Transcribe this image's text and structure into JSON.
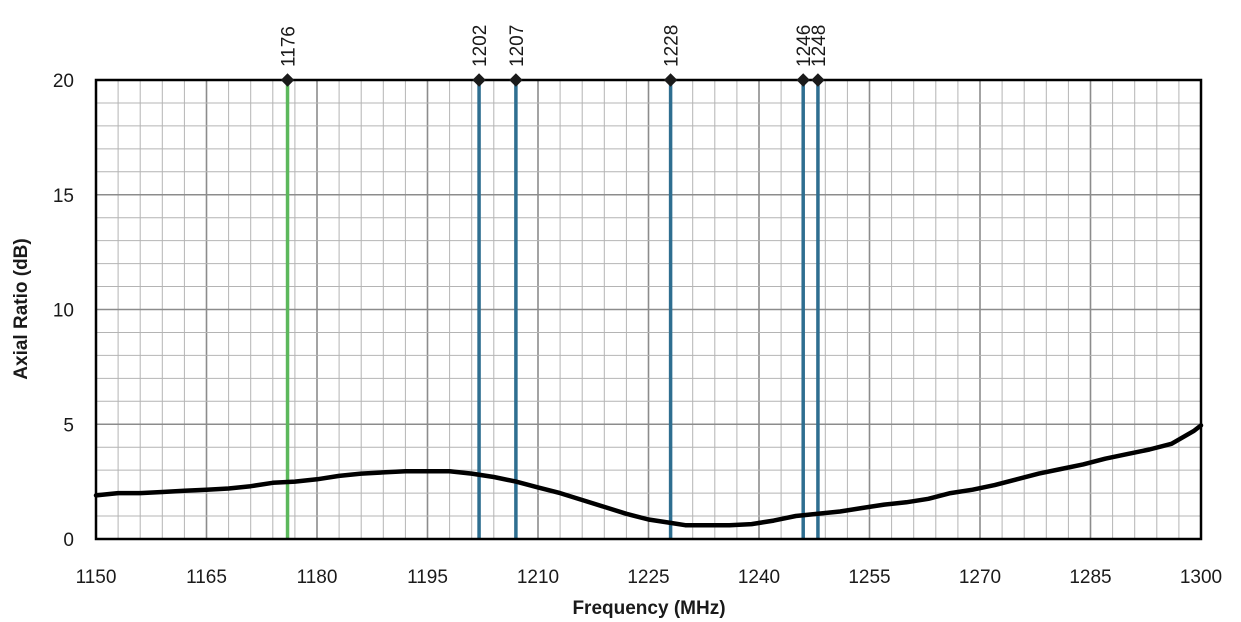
{
  "chart_data": {
    "type": "line",
    "title": "",
    "xlabel": "Frequency (MHz)",
    "ylabel": "Axial Ratio (dB)",
    "xlim": [
      1150,
      1300
    ],
    "ylim": [
      0,
      20
    ],
    "x_ticks": [
      1150,
      1165,
      1180,
      1195,
      1210,
      1225,
      1240,
      1255,
      1270,
      1285,
      1300
    ],
    "x_tick_labels": [
      "1150",
      "1165",
      "1180",
      "1195",
      "1210",
      "1225",
      "1240",
      "1255",
      "1270",
      "1285",
      "1300"
    ],
    "y_ticks": [
      0,
      5,
      10,
      15,
      20
    ],
    "y_tick_labels": [
      "0",
      "5",
      "10",
      "15",
      "20"
    ],
    "grid": true,
    "x_minor_step": 3,
    "y_minor_step": 1,
    "series": [
      {
        "color": "#000000",
        "x": [
          1150,
          1153,
          1156,
          1159,
          1162,
          1165,
          1168,
          1171,
          1174,
          1177,
          1180,
          1183,
          1186,
          1189,
          1192,
          1195,
          1198,
          1201,
          1204,
          1207,
          1210,
          1213,
          1216,
          1219,
          1222,
          1225,
          1228,
          1230,
          1233,
          1236,
          1239,
          1242,
          1245,
          1248,
          1251,
          1254,
          1257,
          1260,
          1263,
          1266,
          1269,
          1272,
          1275,
          1278,
          1281,
          1284,
          1287,
          1290,
          1293,
          1296,
          1299,
          1300
        ],
        "y": [
          1.9,
          2.0,
          2.0,
          2.05,
          2.1,
          2.15,
          2.2,
          2.3,
          2.45,
          2.5,
          2.6,
          2.75,
          2.85,
          2.9,
          2.95,
          2.95,
          2.95,
          2.85,
          2.7,
          2.5,
          2.25,
          2.0,
          1.7,
          1.4,
          1.1,
          0.85,
          0.7,
          0.6,
          0.6,
          0.6,
          0.65,
          0.8,
          1.0,
          1.1,
          1.2,
          1.35,
          1.5,
          1.6,
          1.75,
          2.0,
          2.15,
          2.35,
          2.6,
          2.85,
          3.05,
          3.25,
          3.5,
          3.7,
          3.9,
          4.15,
          4.7,
          4.95
        ]
      }
    ],
    "markers": [
      {
        "x": 1176,
        "label": "1176",
        "color": "#5cb85c"
      },
      {
        "x": 1202,
        "label": "1202",
        "color": "#2e6e90"
      },
      {
        "x": 1207,
        "label": "1207",
        "color": "#2e6e90"
      },
      {
        "x": 1228,
        "label": "1228",
        "color": "#2e6e90"
      },
      {
        "x": 1246,
        "label": "1246",
        "color": "#2e6e90"
      },
      {
        "x": 1248,
        "label": "1248",
        "color": "#2e6e90"
      }
    ]
  }
}
